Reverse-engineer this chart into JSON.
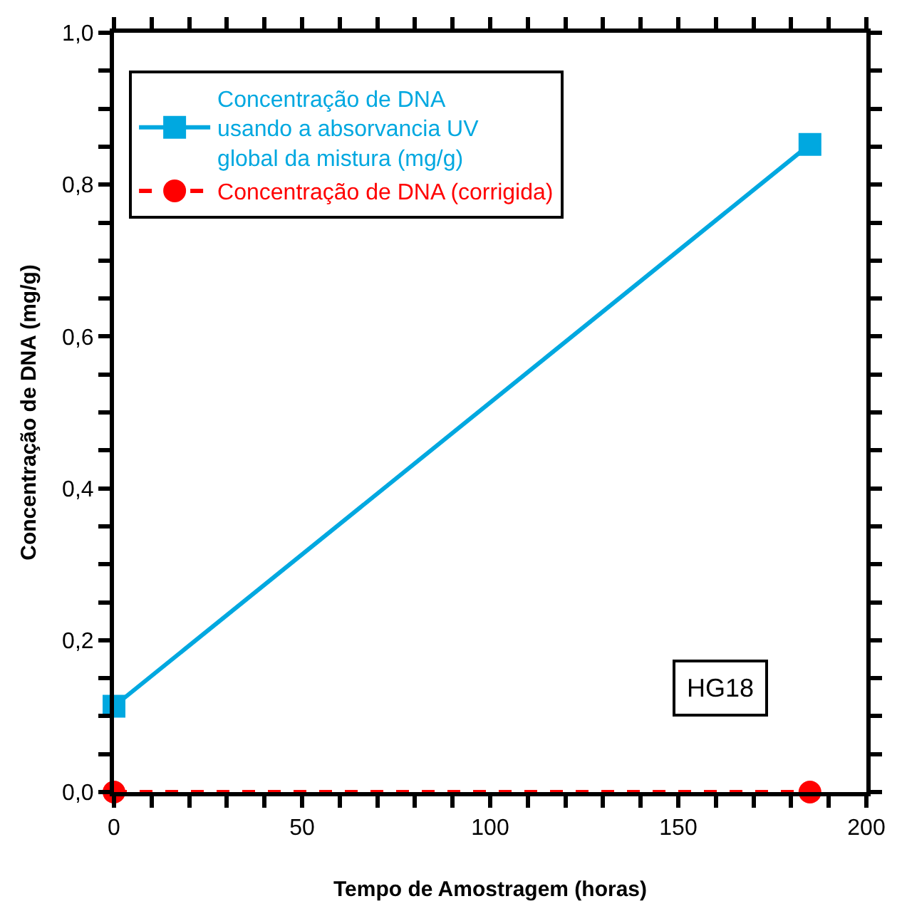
{
  "chart_data": {
    "type": "line",
    "xlabel": "Tempo de Amostragem (horas)",
    "ylabel": "Concentração de DNA (mg/g)",
    "x": [
      0,
      185
    ],
    "series": [
      {
        "name": "Concentração de DNA\nusando a absorvancia UV\nglobal da mistura (mg/g)",
        "color": "#00a8e0",
        "values": [
          0.113,
          0.853
        ],
        "marker": "square",
        "line_style": "solid"
      },
      {
        "name": "Concentração de DNA (corrigida)",
        "color": "#ff0000",
        "values": [
          0.0,
          0.0
        ],
        "marker": "circle",
        "line_style": "dashed"
      }
    ],
    "xlim": [
      0,
      200
    ],
    "ylim": [
      0,
      1.0
    ],
    "xticks": [
      0,
      {
        "value": 10,
        "label": null
      },
      {
        "value": 20,
        "label": null
      },
      {
        "value": 30,
        "label": null
      },
      {
        "value": 40,
        "label": null
      },
      50,
      {
        "value": 60,
        "label": null
      },
      {
        "value": 70,
        "label": null
      },
      {
        "value": 80,
        "label": null
      },
      {
        "value": 90,
        "label": null
      },
      100,
      {
        "value": 110,
        "label": null
      },
      {
        "value": 120,
        "label": null
      },
      {
        "value": 130,
        "label": null
      },
      {
        "value": 140,
        "label": null
      },
      150,
      {
        "value": 160,
        "label": null
      },
      {
        "value": 170,
        "label": null
      },
      {
        "value": 180,
        "label": null
      },
      {
        "value": 190,
        "label": null
      },
      200
    ],
    "yticks": [
      {
        "value": 0,
        "label": "0,0"
      },
      {
        "value": 0.05,
        "label": null
      },
      {
        "value": 0.1,
        "label": null
      },
      {
        "value": 0.15,
        "label": null
      },
      {
        "value": 0.2,
        "label": "0,2"
      },
      {
        "value": 0.25,
        "label": null
      },
      {
        "value": 0.3,
        "label": null
      },
      {
        "value": 0.35,
        "label": null
      },
      {
        "value": 0.4,
        "label": "0,4"
      },
      {
        "value": 0.45,
        "label": null
      },
      {
        "value": 0.5,
        "label": null
      },
      {
        "value": 0.55,
        "label": null
      },
      {
        "value": 0.6,
        "label": "0,6"
      },
      {
        "value": 0.65,
        "label": null
      },
      {
        "value": 0.7,
        "label": null
      },
      {
        "value": 0.75,
        "label": null
      },
      {
        "value": 0.8,
        "label": "0,8"
      },
      {
        "value": 0.85,
        "label": null
      },
      {
        "value": 0.9,
        "label": null
      },
      {
        "value": 0.95,
        "label": null
      },
      {
        "value": 1.0,
        "label": "1,0"
      }
    ],
    "legend": "top left",
    "annotations": [
      "HG18"
    ]
  }
}
